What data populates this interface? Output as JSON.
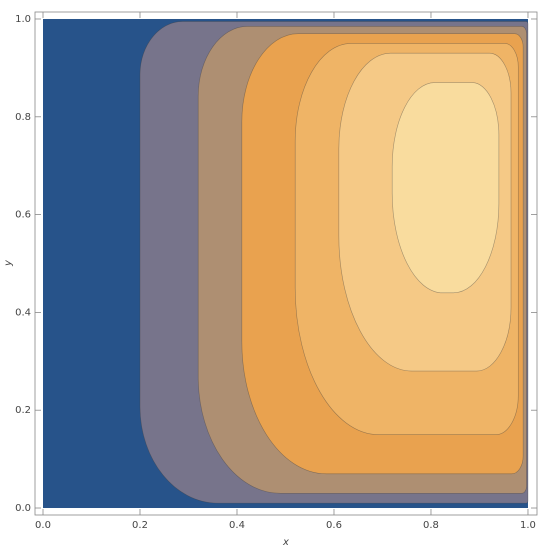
{
  "chart_data": {
    "type": "contour",
    "x_label": "x",
    "y_label": "y",
    "xlim": [
      -0.0165,
      1.0186
    ],
    "ylim": [
      -0.0143,
      1.0143
    ],
    "xticks": [
      {
        "value": 0,
        "label": "0.0"
      },
      {
        "value": 0.2,
        "label": "0.2"
      },
      {
        "value": 0.4,
        "label": "0.4"
      },
      {
        "value": 0.6,
        "label": "0.6"
      },
      {
        "value": 0.8,
        "label": "0.8"
      },
      {
        "value": 1,
        "label": "1.0"
      }
    ],
    "yticks": [
      {
        "value": 0,
        "label": "0.0"
      },
      {
        "value": 0.2,
        "label": "0.2"
      },
      {
        "value": 0.4,
        "label": "0.4"
      },
      {
        "value": 0.6,
        "label": "0.6"
      },
      {
        "value": 0.8,
        "label": "0.8"
      },
      {
        "value": 1,
        "label": "1.0"
      }
    ],
    "colors": [
      "#27538a",
      "#77748b",
      "#ae8f72",
      "#e9a24f",
      "#efb466",
      "#f5c986",
      "#f9dc9e",
      "#fdf2c6"
    ]
  }
}
